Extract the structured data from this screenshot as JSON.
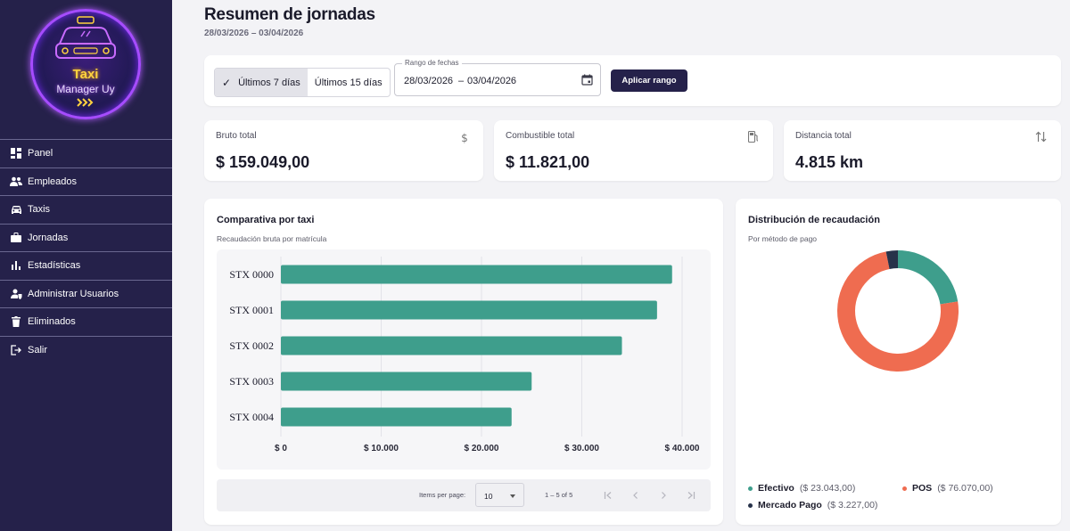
{
  "logo": {
    "line1": "Taxi",
    "line2": "Manager Uy"
  },
  "sidebar": {
    "items": [
      {
        "label": "Panel",
        "icon": "dashboard-icon"
      },
      {
        "label": "Empleados",
        "icon": "people-icon"
      },
      {
        "label": "Taxis",
        "icon": "car-icon"
      },
      {
        "label": "Jornadas",
        "icon": "briefcase-icon"
      },
      {
        "label": "Estadísticas",
        "icon": "bar-chart-icon"
      },
      {
        "label": "Administrar Usuarios",
        "icon": "user-shield-icon"
      },
      {
        "label": "Eliminados",
        "icon": "trash-icon"
      },
      {
        "label": "Salir",
        "icon": "logout-icon"
      }
    ]
  },
  "header": {
    "title": "Resumen de jornadas",
    "subtitle": "28/03/2026 – 03/04/2026"
  },
  "filters": {
    "toggle_7": "Últimos 7 días",
    "toggle_15": "Últimos 15 días",
    "active_toggle": "Últimos 7 días",
    "range_label": "Rango de fechas",
    "range_start": "28/03/2026",
    "range_sep": "–",
    "range_end": "03/04/2026",
    "apply_label": "Aplicar rango"
  },
  "kpis": {
    "gross": {
      "label": "Bruto total",
      "value": "$ 159.049,00",
      "icon": "dollar-icon"
    },
    "fuel": {
      "label": "Combustible total",
      "value": "$ 11.821,00",
      "icon": "fuel-icon"
    },
    "distance": {
      "label": "Distancia total",
      "value": "4.815 km",
      "icon": "swap-vertical-icon"
    }
  },
  "bar_chart_card": {
    "title": "Comparativa por taxi",
    "subtitle": "Recaudación bruta por matrícula"
  },
  "chart_data": [
    {
      "type": "bar",
      "orientation": "horizontal",
      "title": "Comparativa por taxi",
      "subtitle": "Recaudación bruta por matrícula",
      "categories": [
        "STX 0000",
        "STX 0001",
        "STX 0002",
        "STX 0003",
        "STX 0004"
      ],
      "values": [
        39000,
        37500,
        34000,
        25000,
        23000
      ],
      "xlim": [
        0,
        40000
      ],
      "xticks": [
        0,
        10000,
        20000,
        30000,
        40000
      ],
      "xtick_labels": [
        "$ 0",
        "$ 10.000",
        "$ 20.000",
        "$ 30.000",
        "$ 40.000"
      ],
      "grid": true,
      "color": "#3e9e8c"
    },
    {
      "type": "pie",
      "donut": true,
      "title": "Distribución de recaudación",
      "subtitle": "Por método de pago",
      "series": [
        {
          "name": "Efectivo",
          "value": 23043,
          "label": "($ 23.043,00)",
          "color": "#3e9e8c"
        },
        {
          "name": "POS",
          "value": 76070,
          "label": "($ 76.070,00)",
          "color": "#ef6c50"
        },
        {
          "name": "Mercado Pago",
          "value": 3227,
          "label": "($ 3.227,00)",
          "color": "#27324a"
        }
      ],
      "legend": "bottom"
    }
  ],
  "paginator": {
    "items_label": "Items per page:",
    "page_size": "10",
    "range": "1 – 5 of 5"
  }
}
